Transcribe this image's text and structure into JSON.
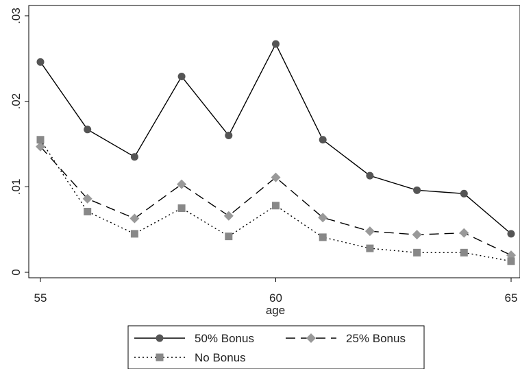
{
  "chart_data": {
    "type": "line",
    "xlabel": "age",
    "ylabel": "",
    "title": "",
    "xlim": [
      55,
      65
    ],
    "ylim": [
      0,
      0.03
    ],
    "x_ticks": [
      55,
      60,
      65
    ],
    "x_tick_labels": [
      "55",
      "60",
      "65"
    ],
    "y_ticks": [
      0,
      0.01,
      0.02,
      0.03
    ],
    "y_tick_labels": [
      "0",
      ".01",
      ".02",
      ".03"
    ],
    "grid": false,
    "legend_position": "bottom",
    "x": [
      55,
      56,
      57,
      58,
      59,
      60,
      61,
      62,
      63,
      64,
      65
    ],
    "series": [
      {
        "name": "50% Bonus",
        "line_style": "solid",
        "marker": "circle",
        "color": "#555555",
        "values": [
          0.0246,
          0.0167,
          0.0135,
          0.0229,
          0.016,
          0.0267,
          0.0155,
          0.0113,
          0.0096,
          0.0092,
          0.0045
        ]
      },
      {
        "name": "25% Bonus",
        "line_style": "dashed",
        "marker": "diamond",
        "color": "#999999",
        "values": [
          0.0147,
          0.0086,
          0.0063,
          0.0103,
          0.0066,
          0.0111,
          0.0064,
          0.0048,
          0.0044,
          0.0046,
          0.002
        ]
      },
      {
        "name": "No Bonus",
        "line_style": "dotted",
        "marker": "square",
        "color": "#888888",
        "values": [
          0.0155,
          0.0071,
          0.0045,
          0.0075,
          0.0042,
          0.0078,
          0.0041,
          0.0028,
          0.0023,
          0.0023,
          0.0013
        ]
      }
    ]
  }
}
